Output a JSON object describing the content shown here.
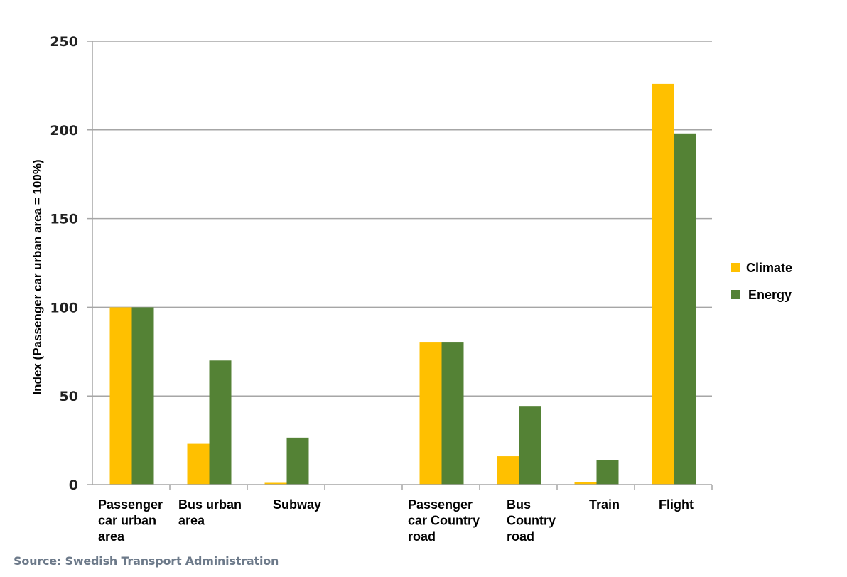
{
  "chart_data": {
    "type": "bar",
    "title": "",
    "xlabel": "",
    "ylabel": "Index (Passenger car urban area = 100%)",
    "ylim": [
      0,
      250
    ],
    "yticks": [
      0,
      50,
      100,
      150,
      200,
      250
    ],
    "grid": true,
    "legend_position": "right",
    "categories": [
      [
        "Passenger",
        "car urban",
        "area"
      ],
      [
        "Bus urban",
        "area"
      ],
      [
        "Subway"
      ],
      [],
      [
        "Passenger",
        "car Country",
        "road"
      ],
      [
        "Bus",
        "Country",
        "road"
      ],
      [
        "Train"
      ],
      [
        "Flight"
      ]
    ],
    "series": [
      {
        "name": "Climate",
        "color": "#ffc000",
        "values": [
          100,
          23,
          1,
          null,
          80.5,
          16,
          1.5,
          226
        ]
      },
      {
        "name": "Energy",
        "color": "#548235",
        "values": [
          100,
          70,
          26.5,
          null,
          80.5,
          44,
          14,
          198
        ]
      }
    ]
  },
  "source": "Source: Swedish Transport Administration"
}
